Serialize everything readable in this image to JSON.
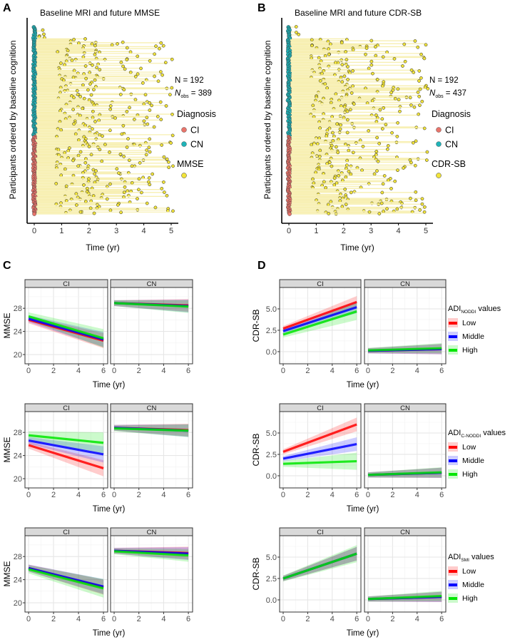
{
  "panel_labels": [
    "A",
    "B",
    "C",
    "D"
  ],
  "chart_data": [
    {
      "type": "scatter",
      "panel": "A",
      "title": "Baseline MRI and future MMSE",
      "xlabel": "Time (yr)",
      "ylabel": "Participants ordered by baseline cognition",
      "xticks": [
        0,
        1,
        2,
        3,
        4,
        5
      ],
      "xlim": [
        -0.25,
        5.3
      ],
      "n_text": "N = 192",
      "nobs_label": "N",
      "nobs_sub": "obs",
      "nobs_value": " = 389",
      "n_participants": 192,
      "legend_diagnosis_title": "Diagnosis",
      "legend_diagnosis": [
        {
          "label": "CI",
          "color": "#e8746b"
        },
        {
          "label": "CN",
          "color": "#1fb3b8"
        }
      ],
      "legend_measure_title": "MMSE",
      "measure_color": "#f2e43a",
      "line_color": "#f7efb0"
    },
    {
      "type": "scatter",
      "panel": "B",
      "title": "Baseline MRI and future CDR-SB",
      "xlabel": "Time (yr)",
      "ylabel": "Participants ordered by baseline cognition",
      "xticks": [
        0,
        1,
        2,
        3,
        4,
        5
      ],
      "xlim": [
        -0.25,
        5.3
      ],
      "n_text": "N = 192",
      "nobs_label": "N",
      "nobs_sub": "obs",
      "nobs_value": " = 437",
      "n_participants": 192,
      "legend_diagnosis_title": "Diagnosis",
      "legend_diagnosis": [
        {
          "label": "CI",
          "color": "#e8746b"
        },
        {
          "label": "CN",
          "color": "#1fb3b8"
        }
      ],
      "legend_measure_title": "CDR-SB",
      "measure_color": "#f2e43a",
      "line_color": "#f7efb0"
    },
    {
      "type": "line",
      "panel": "C",
      "ylabel": "MMSE",
      "xlabel": "Time (yr)",
      "xticks": [
        0,
        2,
        4,
        6
      ],
      "yticks": [
        20,
        24,
        28
      ],
      "xlim": [
        -0.29,
        6.34
      ],
      "ylim": [
        18.4,
        31.6
      ],
      "rows": [
        {
          "facets": [
            {
              "label": "CI",
              "series": [
                {
                  "group": "Low",
                  "x": [
                    0,
                    6
                  ],
                  "y": [
                    26.0,
                    22.4
                  ],
                  "ci": [
                    0.6,
                    1.3
                  ]
                },
                {
                  "group": "Middle",
                  "x": [
                    0,
                    6
                  ],
                  "y": [
                    26.2,
                    22.6
                  ],
                  "ci": [
                    0.6,
                    1.3
                  ]
                },
                {
                  "group": "High",
                  "x": [
                    0,
                    6
                  ],
                  "y": [
                    26.6,
                    22.8
                  ],
                  "ci": [
                    0.7,
                    1.6
                  ]
                }
              ]
            },
            {
              "label": "CN",
              "series": [
                {
                  "group": "Low",
                  "x": [
                    0,
                    6
                  ],
                  "y": [
                    28.9,
                    28.5
                  ],
                  "ci": [
                    0.5,
                    1.1
                  ]
                },
                {
                  "group": "Middle",
                  "x": [
                    0,
                    6
                  ],
                  "y": [
                    28.9,
                    28.4
                  ],
                  "ci": [
                    0.5,
                    1.1
                  ]
                },
                {
                  "group": "High",
                  "x": [
                    0,
                    6
                  ],
                  "y": [
                    28.9,
                    28.3
                  ],
                  "ci": [
                    0.5,
                    1.1
                  ]
                }
              ]
            }
          ]
        },
        {
          "facets": [
            {
              "label": "CI",
              "series": [
                {
                  "group": "Low",
                  "x": [
                    0,
                    6
                  ],
                  "y": [
                    25.8,
                    21.8
                  ],
                  "ci": [
                    0.6,
                    1.4
                  ]
                },
                {
                  "group": "Middle",
                  "x": [
                    0,
                    6
                  ],
                  "y": [
                    26.6,
                    24.2
                  ],
                  "ci": [
                    0.6,
                    1.4
                  ]
                },
                {
                  "group": "High",
                  "x": [
                    0,
                    6
                  ],
                  "y": [
                    27.5,
                    26.2
                  ],
                  "ci": [
                    0.7,
                    1.8
                  ]
                }
              ]
            },
            {
              "label": "CN",
              "series": [
                {
                  "group": "Low",
                  "x": [
                    0,
                    6
                  ],
                  "y": [
                    28.8,
                    28.4
                  ],
                  "ci": [
                    0.5,
                    1.1
                  ]
                },
                {
                  "group": "Middle",
                  "x": [
                    0,
                    6
                  ],
                  "y": [
                    28.8,
                    28.3
                  ],
                  "ci": [
                    0.5,
                    1.1
                  ]
                },
                {
                  "group": "High",
                  "x": [
                    0,
                    6
                  ],
                  "y": [
                    28.7,
                    28.3
                  ],
                  "ci": [
                    0.5,
                    1.1
                  ]
                }
              ]
            }
          ]
        },
        {
          "facets": [
            {
              "label": "CI",
              "series": [
                {
                  "group": "Low",
                  "x": [
                    0,
                    6
                  ],
                  "y": [
                    26.0,
                    22.7
                  ],
                  "ci": [
                    0.6,
                    1.3
                  ]
                },
                {
                  "group": "Middle",
                  "x": [
                    0,
                    6
                  ],
                  "y": [
                    26.0,
                    22.8
                  ],
                  "ci": [
                    0.6,
                    1.3
                  ]
                },
                {
                  "group": "High",
                  "x": [
                    0,
                    6
                  ],
                  "y": [
                    25.8,
                    22.5
                  ],
                  "ci": [
                    0.7,
                    1.6
                  ]
                }
              ]
            },
            {
              "label": "CN",
              "series": [
                {
                  "group": "Low",
                  "x": [
                    0,
                    6
                  ],
                  "y": [
                    29.0,
                    28.6
                  ],
                  "ci": [
                    0.5,
                    1.1
                  ]
                },
                {
                  "group": "Middle",
                  "x": [
                    0,
                    6
                  ],
                  "y": [
                    29.0,
                    28.5
                  ],
                  "ci": [
                    0.5,
                    1.1
                  ]
                },
                {
                  "group": "High",
                  "x": [
                    0,
                    6
                  ],
                  "y": [
                    28.9,
                    28.2
                  ],
                  "ci": [
                    0.5,
                    1.1
                  ]
                }
              ]
            }
          ]
        }
      ]
    },
    {
      "type": "line",
      "panel": "D",
      "ylabel": "CDR-SB",
      "xlabel": "Time (yr)",
      "xticks": [
        0,
        2,
        4,
        6
      ],
      "yticks": [
        0.0,
        2.5,
        5.0
      ],
      "ytick_labels": [
        "0.0",
        "2.5",
        "5.0"
      ],
      "xlim": [
        -0.29,
        6.34
      ],
      "ylim": [
        -1.42,
        7.5
      ],
      "legend_groups": [
        {
          "label": "Low",
          "color": "#ff0000"
        },
        {
          "label": "Middle",
          "color": "#0000ff"
        },
        {
          "label": "High",
          "color": "#00e600"
        }
      ],
      "rows": [
        {
          "legend_title": {
            "base": "ADI",
            "sub": "NODDI",
            "suffix": " values"
          },
          "facets": [
            {
              "label": "CI",
              "series": [
                {
                  "group": "Low",
                  "x": [
                    0,
                    6
                  ],
                  "y": [
                    2.7,
                    5.8
                  ],
                  "ci": [
                    0.3,
                    0.7
                  ]
                },
                {
                  "group": "Middle",
                  "x": [
                    0,
                    6
                  ],
                  "y": [
                    2.4,
                    5.2
                  ],
                  "ci": [
                    0.3,
                    0.7
                  ]
                },
                {
                  "group": "High",
                  "x": [
                    0,
                    6
                  ],
                  "y": [
                    2.0,
                    4.7
                  ],
                  "ci": [
                    0.35,
                    1.0
                  ]
                }
              ]
            },
            {
              "label": "CN",
              "series": [
                {
                  "group": "Low",
                  "x": [
                    0,
                    6
                  ],
                  "y": [
                    0.1,
                    0.3
                  ],
                  "ci": [
                    0.3,
                    0.6
                  ]
                },
                {
                  "group": "Middle",
                  "x": [
                    0,
                    6
                  ],
                  "y": [
                    0.1,
                    0.3
                  ],
                  "ci": [
                    0.3,
                    0.6
                  ]
                },
                {
                  "group": "High",
                  "x": [
                    0,
                    6
                  ],
                  "y": [
                    0.15,
                    0.4
                  ],
                  "ci": [
                    0.3,
                    0.6
                  ]
                }
              ]
            }
          ]
        },
        {
          "legend_title": {
            "base": "ADI",
            "sub": "C-NODDI",
            "suffix": " values"
          },
          "facets": [
            {
              "label": "CI",
              "series": [
                {
                  "group": "Low",
                  "x": [
                    0,
                    6
                  ],
                  "y": [
                    2.8,
                    6.0
                  ],
                  "ci": [
                    0.3,
                    0.8
                  ]
                },
                {
                  "group": "Middle",
                  "x": [
                    0,
                    6
                  ],
                  "y": [
                    2.0,
                    3.7
                  ],
                  "ci": [
                    0.3,
                    0.8
                  ]
                },
                {
                  "group": "High",
                  "x": [
                    0,
                    6
                  ],
                  "y": [
                    1.4,
                    1.7
                  ],
                  "ci": [
                    0.35,
                    1.0
                  ]
                }
              ]
            },
            {
              "label": "CN",
              "series": [
                {
                  "group": "Low",
                  "x": [
                    0,
                    6
                  ],
                  "y": [
                    0.1,
                    0.35
                  ],
                  "ci": [
                    0.3,
                    0.6
                  ]
                },
                {
                  "group": "Middle",
                  "x": [
                    0,
                    6
                  ],
                  "y": [
                    0.1,
                    0.35
                  ],
                  "ci": [
                    0.3,
                    0.6
                  ]
                },
                {
                  "group": "High",
                  "x": [
                    0,
                    6
                  ],
                  "y": [
                    0.1,
                    0.4
                  ],
                  "ci": [
                    0.3,
                    0.6
                  ]
                }
              ]
            }
          ]
        },
        {
          "legend_title": {
            "base": "ADI",
            "sub": "SMI",
            "suffix": " values"
          },
          "facets": [
            {
              "label": "CI",
              "series": [
                {
                  "group": "Low",
                  "x": [
                    0,
                    6
                  ],
                  "y": [
                    2.5,
                    5.4
                  ],
                  "ci": [
                    0.3,
                    0.8
                  ]
                },
                {
                  "group": "Middle",
                  "x": [
                    0,
                    6
                  ],
                  "y": [
                    2.5,
                    5.4
                  ],
                  "ci": [
                    0.3,
                    0.8
                  ]
                },
                {
                  "group": "High",
                  "x": [
                    0,
                    6
                  ],
                  "y": [
                    2.5,
                    5.4
                  ],
                  "ci": [
                    0.35,
                    1.0
                  ]
                }
              ]
            },
            {
              "label": "CN",
              "series": [
                {
                  "group": "Low",
                  "x": [
                    0,
                    6
                  ],
                  "y": [
                    0.1,
                    0.35
                  ],
                  "ci": [
                    0.3,
                    0.6
                  ]
                },
                {
                  "group": "Middle",
                  "x": [
                    0,
                    6
                  ],
                  "y": [
                    0.1,
                    0.35
                  ],
                  "ci": [
                    0.3,
                    0.6
                  ]
                },
                {
                  "group": "High",
                  "x": [
                    0,
                    6
                  ],
                  "y": [
                    0.1,
                    0.45
                  ],
                  "ci": [
                    0.3,
                    0.6
                  ]
                }
              ]
            }
          ]
        }
      ]
    }
  ],
  "group_colors": {
    "Low": "#ff0000",
    "Middle": "#0000ff",
    "High": "#00e600"
  }
}
